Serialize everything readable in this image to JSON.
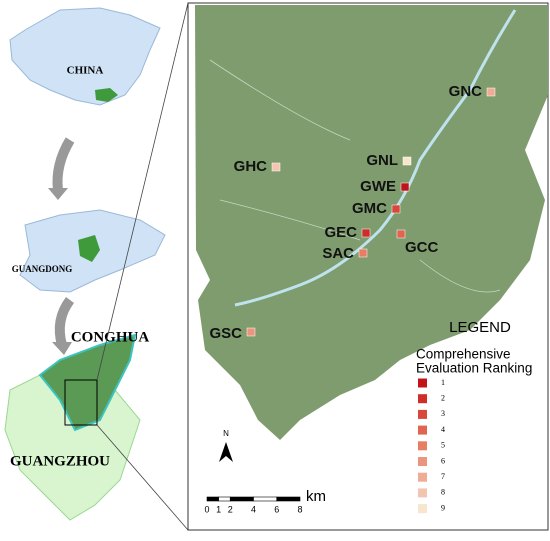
{
  "inset": {
    "china": "CHINA",
    "guangdong": "GUANGDONG",
    "conghua": "CONGHUA",
    "guangzhou": "GUANGZHOU"
  },
  "sites": [
    {
      "label": "GNC",
      "rank": 7
    },
    {
      "label": "GHC",
      "rank": 8
    },
    {
      "label": "GNL",
      "rank": 9
    },
    {
      "label": "GWE",
      "rank": 1
    },
    {
      "label": "GMC",
      "rank": 3
    },
    {
      "label": "GEC",
      "rank": 2
    },
    {
      "label": "GCC",
      "rank": 4
    },
    {
      "label": "SAC",
      "rank": 5
    },
    {
      "label": "GSC",
      "rank": 6
    }
  ],
  "legend": {
    "title": "LEGEND",
    "subtitle": [
      "Comprehensive",
      "Evaluation Ranking"
    ],
    "items": [
      {
        "rank": 1,
        "color": "#c0141a"
      },
      {
        "rank": 2,
        "color": "#cf2c2a"
      },
      {
        "rank": 3,
        "color": "#d9473a"
      },
      {
        "rank": 4,
        "color": "#e06450"
      },
      {
        "rank": 5,
        "color": "#e87d66"
      },
      {
        "rank": 6,
        "color": "#eb957f"
      },
      {
        "rank": 7,
        "color": "#f0ab95"
      },
      {
        "rank": 8,
        "color": "#f3c4b0"
      },
      {
        "rank": 9,
        "color": "#f8e6cc"
      }
    ]
  },
  "scale": {
    "ticks": [
      0,
      1,
      2,
      4,
      6,
      8
    ],
    "unit": "km"
  },
  "north": "N"
}
